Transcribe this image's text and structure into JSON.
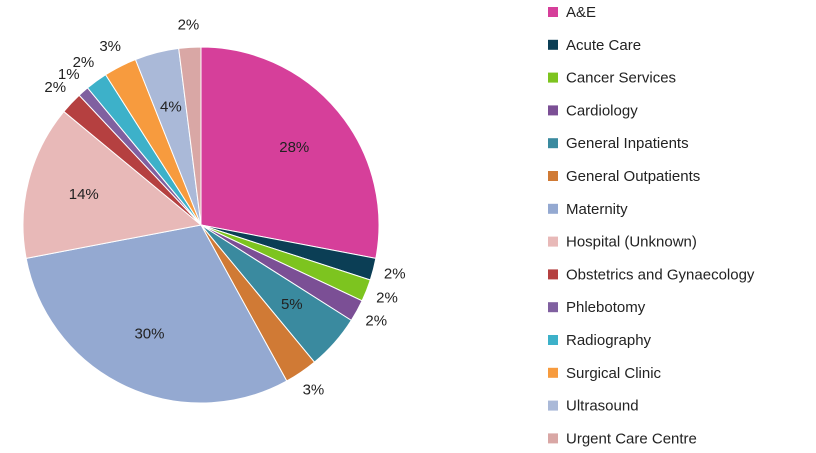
{
  "chart_data": {
    "type": "pie",
    "categories": [
      "A&E",
      "Acute Care",
      "Cancer Services",
      "Cardiology",
      "General Inpatients",
      "General Outpatients",
      "Maternity",
      "Hospital (Unknown)",
      "Obstetrics and Gynaecology",
      "Phlebotomy",
      "Radiography",
      "Surgical Clinic",
      "Ultrasound",
      "Urgent Care Centre"
    ],
    "values": [
      28,
      2,
      2,
      2,
      5,
      3,
      30,
      14,
      2,
      1,
      2,
      3,
      4,
      2
    ],
    "value_labels": [
      "28%",
      "2%",
      "2%",
      "2%",
      "5%",
      "3%",
      "30%",
      "14%",
      "2%",
      "1%",
      "2%",
      "3%",
      "4%",
      "2%"
    ],
    "colors": [
      "#d63f9a",
      "#0b3e55",
      "#7dc41f",
      "#7b4f95",
      "#3a8a9f",
      "#d07a35",
      "#94a9d1",
      "#e8b9b8",
      "#b54040",
      "#8060a0",
      "#3db1c9",
      "#f79b3e",
      "#aab9d8",
      "#d9a7a5"
    ],
    "legend": "right"
  }
}
